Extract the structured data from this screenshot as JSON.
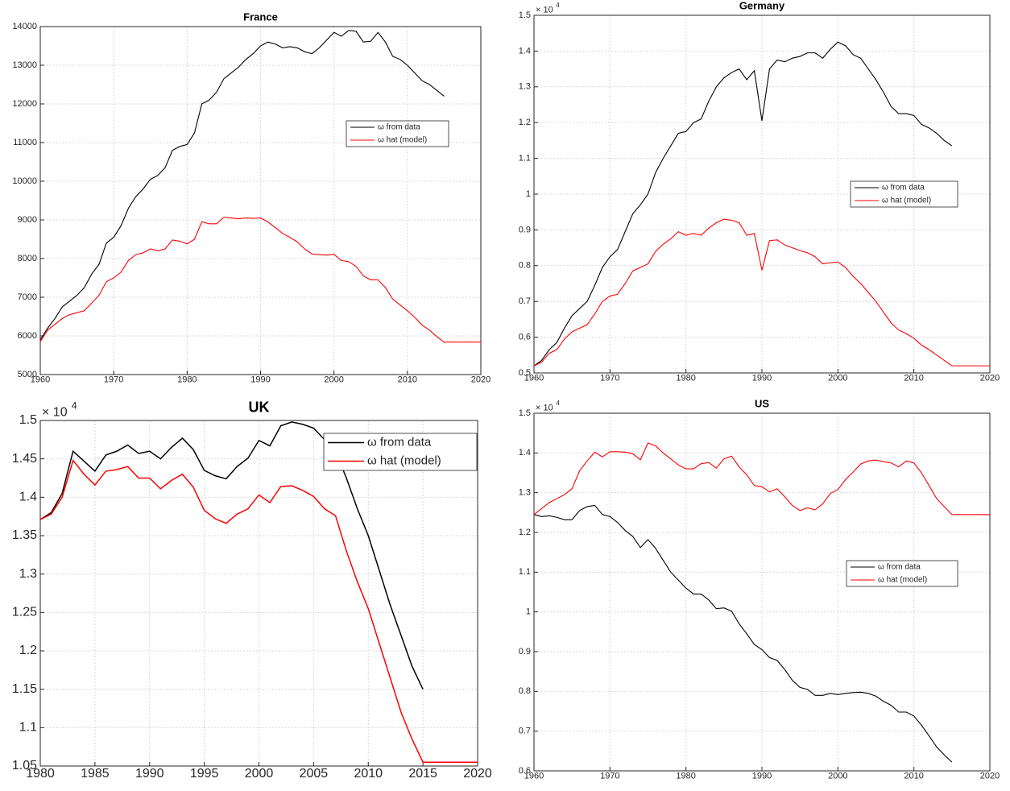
{
  "chart_data": [
    {
      "type": "line",
      "title": "France",
      "x": [
        1960,
        1961,
        1962,
        1963,
        1964,
        1965,
        1966,
        1967,
        1968,
        1969,
        1970,
        1971,
        1972,
        1973,
        1974,
        1975,
        1976,
        1977,
        1978,
        1979,
        1980,
        1981,
        1982,
        1983,
        1984,
        1985,
        1986,
        1987,
        1988,
        1989,
        1990,
        1991,
        1992,
        1993,
        1994,
        1995,
        1996,
        1997,
        1998,
        1999,
        2000,
        2001,
        2002,
        2003,
        2004,
        2005,
        2006,
        2007,
        2008,
        2009,
        2010,
        2011,
        2012,
        2013,
        2014,
        2015,
        2020
      ],
      "series": [
        {
          "name": "ω from data",
          "color": "#000000",
          "values": [
            5900,
            6200,
            6450,
            6750,
            6900,
            7050,
            7250,
            7600,
            7850,
            8400,
            8550,
            8850,
            9300,
            9600,
            9800,
            10050,
            10150,
            10350,
            10800,
            10900,
            10950,
            11250,
            12000,
            12100,
            12300,
            12650,
            12800,
            12950,
            13150,
            13300,
            13500,
            13600,
            13550,
            13450,
            13480,
            13450,
            13350,
            13300,
            13450,
            13650,
            13850,
            13750,
            13900,
            13880,
            13600,
            13620,
            13850,
            13600,
            13230,
            13150,
            13000,
            12800,
            12600,
            12500,
            12350,
            12200,
            null
          ]
        },
        {
          "name": "ω hat (model)",
          "color": "#ff0000",
          "values": [
            5850,
            6150,
            6300,
            6450,
            6550,
            6600,
            6650,
            6850,
            7050,
            7400,
            7500,
            7650,
            7950,
            8100,
            8150,
            8250,
            8200,
            8250,
            8480,
            8450,
            8380,
            8500,
            8950,
            8900,
            8900,
            9070,
            9050,
            9030,
            9050,
            9040,
            9050,
            8950,
            8800,
            8650,
            8550,
            8430,
            8250,
            8120,
            8100,
            8090,
            8110,
            7950,
            7920,
            7800,
            7550,
            7450,
            7450,
            7250,
            6950,
            6800,
            6650,
            6480,
            6280,
            6150,
            5980,
            5840,
            5840
          ]
        }
      ],
      "xlim": [
        1960,
        2020
      ],
      "xticks": [
        1960,
        1970,
        1980,
        1990,
        2000,
        2010,
        2020
      ],
      "ylim": [
        5000,
        14000
      ],
      "yticks": [
        5000,
        6000,
        7000,
        8000,
        9000,
        10000,
        11000,
        12000,
        13000,
        14000
      ],
      "grid": true,
      "legend": "east"
    },
    {
      "type": "line",
      "title": "Germany",
      "y_exponent_label": "× 10",
      "y_exponent": 4,
      "x": [
        1960,
        1961,
        1962,
        1963,
        1964,
        1965,
        1966,
        1967,
        1968,
        1969,
        1970,
        1971,
        1972,
        1973,
        1974,
        1975,
        1976,
        1977,
        1978,
        1979,
        1980,
        1981,
        1982,
        1983,
        1984,
        1985,
        1986,
        1987,
        1988,
        1989,
        1990,
        1991,
        1992,
        1993,
        1994,
        1995,
        1996,
        1997,
        1998,
        1999,
        2000,
        2001,
        2002,
        2003,
        2004,
        2005,
        2006,
        2007,
        2008,
        2009,
        2010,
        2011,
        2012,
        2013,
        2014,
        2015,
        2020
      ],
      "series": [
        {
          "name": "ω from data",
          "color": "#000000",
          "values": [
            0.52,
            0.535,
            0.565,
            0.585,
            0.625,
            0.66,
            0.68,
            0.7,
            0.745,
            0.795,
            0.825,
            0.845,
            0.895,
            0.945,
            0.97,
            1.0,
            1.06,
            1.1,
            1.135,
            1.17,
            1.175,
            1.2,
            1.21,
            1.26,
            1.3,
            1.325,
            1.34,
            1.35,
            1.32,
            1.345,
            1.205,
            1.35,
            1.375,
            1.37,
            1.38,
            1.385,
            1.395,
            1.395,
            1.38,
            1.405,
            1.425,
            1.415,
            1.39,
            1.38,
            1.35,
            1.32,
            1.285,
            1.245,
            1.225,
            1.225,
            1.22,
            1.195,
            1.185,
            1.17,
            1.15,
            1.135,
            null
          ]
        },
        {
          "name": "ω hat (model)",
          "color": "#ff0000",
          "values": [
            0.52,
            0.53,
            0.555,
            0.565,
            0.595,
            0.615,
            0.625,
            0.635,
            0.665,
            0.7,
            0.715,
            0.72,
            0.75,
            0.785,
            0.795,
            0.805,
            0.84,
            0.86,
            0.875,
            0.895,
            0.885,
            0.89,
            0.885,
            0.905,
            0.92,
            0.93,
            0.927,
            0.92,
            0.885,
            0.89,
            0.787,
            0.87,
            0.872,
            0.858,
            0.85,
            0.842,
            0.836,
            0.825,
            0.805,
            0.808,
            0.81,
            0.795,
            0.77,
            0.75,
            0.725,
            0.7,
            0.67,
            0.64,
            0.62,
            0.61,
            0.597,
            0.578,
            0.565,
            0.55,
            0.535,
            0.52,
            0.52
          ]
        }
      ],
      "xlim": [
        1960,
        2020
      ],
      "xticks": [
        1960,
        1970,
        1980,
        1990,
        2000,
        2010,
        2020
      ],
      "ylim": [
        0.5,
        1.5
      ],
      "yticks": [
        0.5,
        0.6,
        0.7,
        0.8,
        0.9,
        1,
        1.1,
        1.2,
        1.3,
        1.4,
        1.5
      ],
      "grid": true,
      "legend": "east"
    },
    {
      "type": "line",
      "title": "UK",
      "y_exponent_label": "× 10",
      "y_exponent": 4,
      "x": [
        1980,
        1981,
        1982,
        1983,
        1984,
        1985,
        1986,
        1987,
        1988,
        1989,
        1990,
        1991,
        1992,
        1993,
        1994,
        1995,
        1996,
        1997,
        1998,
        1999,
        2000,
        2001,
        2002,
        2003,
        2004,
        2005,
        2006,
        2007,
        2008,
        2009,
        2010,
        2011,
        2012,
        2013,
        2014,
        2015,
        2020
      ],
      "series": [
        {
          "name": "ω from data",
          "color": "#000000",
          "values": [
            1.371,
            1.38,
            1.405,
            1.46,
            1.447,
            1.434,
            1.455,
            1.46,
            1.468,
            1.457,
            1.46,
            1.45,
            1.465,
            1.477,
            1.462,
            1.435,
            1.428,
            1.424,
            1.44,
            1.451,
            1.474,
            1.467,
            1.493,
            1.498,
            1.495,
            1.49,
            1.475,
            1.46,
            1.425,
            1.385,
            1.35,
            1.305,
            1.26,
            1.22,
            1.18,
            1.15,
            null
          ]
        },
        {
          "name": "ω hat (model)",
          "color": "#ff0000",
          "values": [
            1.371,
            1.378,
            1.4,
            1.448,
            1.43,
            1.416,
            1.434,
            1.436,
            1.44,
            1.425,
            1.425,
            1.411,
            1.422,
            1.43,
            1.413,
            1.383,
            1.372,
            1.366,
            1.378,
            1.385,
            1.403,
            1.393,
            1.414,
            1.415,
            1.409,
            1.401,
            1.385,
            1.376,
            1.33,
            1.29,
            1.255,
            1.21,
            1.165,
            1.12,
            1.085,
            1.055,
            1.055
          ]
        }
      ],
      "xlim": [
        1980,
        2020
      ],
      "xticks": [
        1980,
        1985,
        1990,
        1995,
        2000,
        2005,
        2010,
        2015,
        2020
      ],
      "ylim": [
        1.05,
        1.5
      ],
      "yticks": [
        1.05,
        1.1,
        1.15,
        1.2,
        1.25,
        1.3,
        1.35,
        1.4,
        1.45,
        1.5
      ],
      "grid": true,
      "legend": "northeast"
    },
    {
      "type": "line",
      "title": "US",
      "y_exponent_label": "× 10",
      "y_exponent": 4,
      "x": [
        1960,
        1961,
        1962,
        1963,
        1964,
        1965,
        1966,
        1967,
        1968,
        1969,
        1970,
        1971,
        1972,
        1973,
        1974,
        1975,
        1976,
        1977,
        1978,
        1979,
        1980,
        1981,
        1982,
        1983,
        1984,
        1985,
        1986,
        1987,
        1988,
        1989,
        1990,
        1991,
        1992,
        1993,
        1994,
        1995,
        1996,
        1997,
        1998,
        1999,
        2000,
        2001,
        2002,
        2003,
        2004,
        2005,
        2006,
        2007,
        2008,
        2009,
        2010,
        2011,
        2012,
        2013,
        2014,
        2015,
        2020
      ],
      "series": [
        {
          "name": "ω from data",
          "color": "#000000",
          "values": [
            1.245,
            1.24,
            1.242,
            1.238,
            1.232,
            1.232,
            1.255,
            1.265,
            1.268,
            1.245,
            1.24,
            1.225,
            1.205,
            1.19,
            1.162,
            1.182,
            1.16,
            1.13,
            1.1,
            1.08,
            1.06,
            1.045,
            1.045,
            1.03,
            1.008,
            1.01,
            1.002,
            0.97,
            0.945,
            0.918,
            0.905,
            0.885,
            0.878,
            0.855,
            0.828,
            0.81,
            0.805,
            0.79,
            0.79,
            0.795,
            0.792,
            0.795,
            0.797,
            0.798,
            0.795,
            0.788,
            0.775,
            0.765,
            0.748,
            0.748,
            0.738,
            0.715,
            0.688,
            0.66,
            0.64,
            0.622,
            null
          ]
        },
        {
          "name": "ω hat (model)",
          "color": "#ff0000",
          "values": [
            1.245,
            1.26,
            1.275,
            1.285,
            1.295,
            1.31,
            1.355,
            1.38,
            1.402,
            1.39,
            1.403,
            1.403,
            1.402,
            1.398,
            1.383,
            1.425,
            1.418,
            1.4,
            1.385,
            1.37,
            1.36,
            1.36,
            1.373,
            1.376,
            1.362,
            1.385,
            1.392,
            1.365,
            1.345,
            1.318,
            1.315,
            1.302,
            1.31,
            1.29,
            1.268,
            1.255,
            1.262,
            1.257,
            1.272,
            1.298,
            1.308,
            1.333,
            1.352,
            1.372,
            1.38,
            1.382,
            1.378,
            1.375,
            1.365,
            1.38,
            1.375,
            1.35,
            1.318,
            1.285,
            1.265,
            1.245,
            1.245
          ]
        }
      ],
      "xlim": [
        1960,
        2020
      ],
      "xticks": [
        1960,
        1970,
        1980,
        1990,
        2000,
        2010,
        2020
      ],
      "ylim": [
        0.6,
        1.5
      ],
      "yticks": [
        0.6,
        0.7,
        0.8,
        0.9,
        1,
        1.1,
        1.2,
        1.3,
        1.4,
        1.5
      ],
      "grid": true,
      "legend": "east"
    }
  ]
}
